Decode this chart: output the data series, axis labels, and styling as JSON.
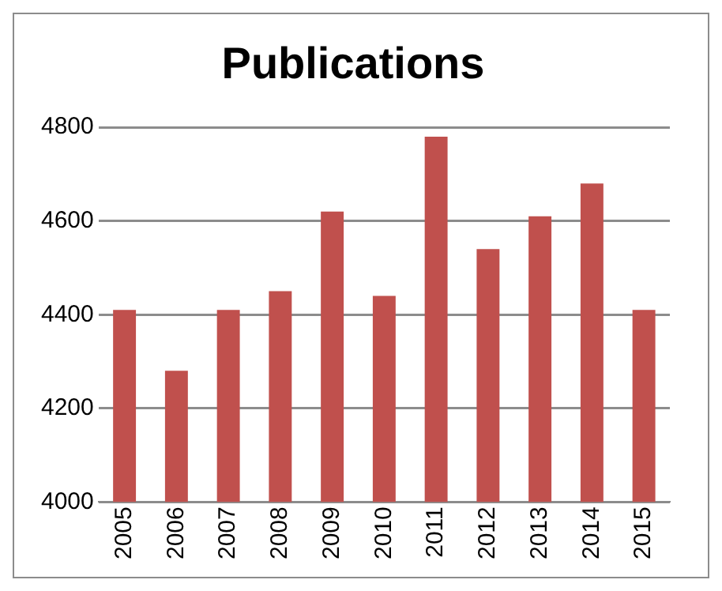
{
  "chart_data": {
    "type": "bar",
    "title": "Publications",
    "categories": [
      "2005",
      "2006",
      "2007",
      "2008",
      "2009",
      "2010",
      "2011",
      "2012",
      "2013",
      "2014",
      "2015"
    ],
    "values": [
      4410,
      4280,
      4410,
      4450,
      4620,
      4440,
      4780,
      4540,
      4610,
      4680,
      4410
    ],
    "color": "#c0504d",
    "ylim": [
      4000,
      4800
    ],
    "yticks": [
      4000,
      4200,
      4400,
      4600,
      4800
    ],
    "grid": "y",
    "legend": false
  }
}
